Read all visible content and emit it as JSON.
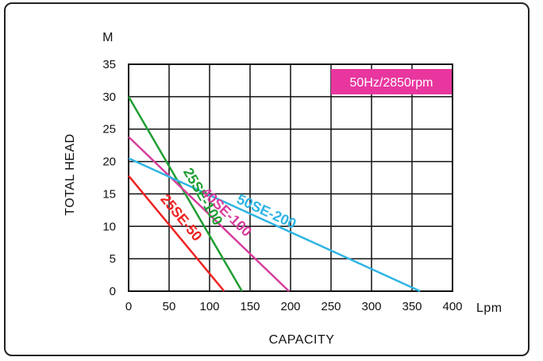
{
  "chart_data": {
    "type": "line",
    "xlabel": "CAPACITY",
    "ylabel": "TOTAL HEAD",
    "x_unit": "Lpm",
    "y_unit": "M",
    "xlim": [
      0,
      400
    ],
    "ylim": [
      0,
      35
    ],
    "x_ticks": [
      "0",
      "50",
      "100",
      "150",
      "200",
      "250",
      "300",
      "350",
      "400"
    ],
    "y_ticks": [
      "0",
      "5",
      "10",
      "15",
      "20",
      "25",
      "30",
      "35"
    ],
    "grid": true,
    "annotation": "50Hz/2850rpm",
    "annotation_color": "#e8369e",
    "series": [
      {
        "name": "25SE-50",
        "color": "#ee2222",
        "points": [
          [
            0,
            17.8
          ],
          [
            118,
            0
          ]
        ]
      },
      {
        "name": "25SE-100",
        "color": "#1f9e33",
        "points": [
          [
            0,
            30
          ],
          [
            140,
            0
          ]
        ]
      },
      {
        "name": "40SE-100",
        "color": "#d63d9c",
        "points": [
          [
            0,
            23.8
          ],
          [
            198,
            0
          ]
        ]
      },
      {
        "name": "50SE-200",
        "color": "#2fb4e3",
        "points": [
          [
            0,
            20.5
          ],
          [
            360,
            0
          ]
        ]
      }
    ]
  }
}
